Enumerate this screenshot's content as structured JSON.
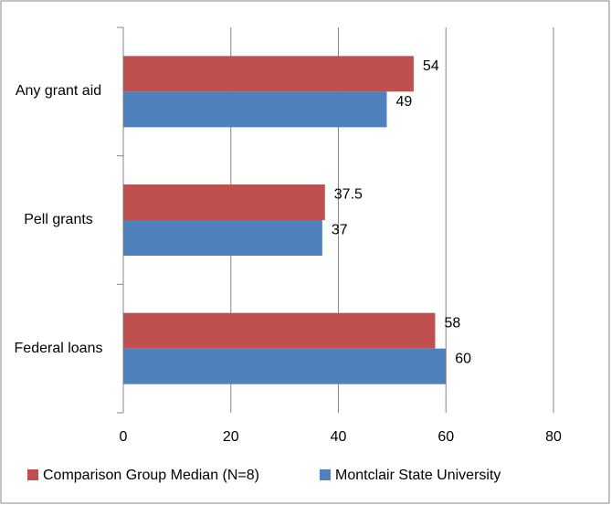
{
  "chart_data": {
    "type": "bar",
    "orientation": "horizontal",
    "categories": [
      "Any grant aid",
      "Pell grants",
      "Federal loans"
    ],
    "series": [
      {
        "name": "Comparison Group Median (N=8)",
        "color": "#c0504d",
        "values": [
          54,
          37.5,
          58
        ]
      },
      {
        "name": "Montclair State University",
        "color": "#4f81bd",
        "values": [
          49,
          37,
          60
        ]
      }
    ],
    "xlim": [
      0,
      80
    ],
    "xticks": [
      0,
      20,
      40,
      60,
      80
    ],
    "grid": true,
    "legend": "bottom"
  }
}
